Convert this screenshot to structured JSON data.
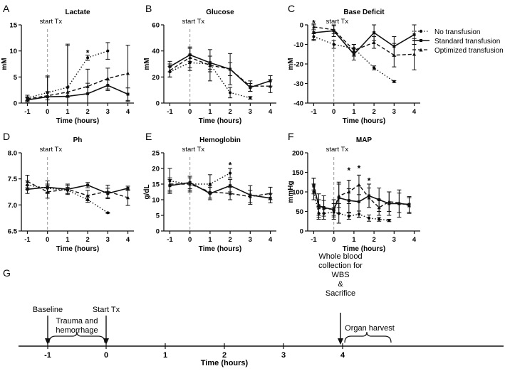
{
  "chart_data": [
    {
      "panel": "A",
      "type": "line",
      "title": "Lactate",
      "xlabel": "Time (hours)",
      "ylabel": "mM",
      "ylim": [
        0,
        15
      ],
      "yticks": [
        0,
        5,
        10,
        15
      ],
      "xlim": [
        -1.3,
        4.3
      ],
      "xticks": [
        -1,
        0,
        1,
        2,
        3,
        4
      ],
      "marker_label": "start Tx",
      "marker_x": 0,
      "series": [
        {
          "name": "No transfusion",
          "style": "dotted",
          "x": [
            -1,
            0,
            1,
            2,
            3
          ],
          "values": [
            1.0,
            2.0,
            3.0,
            8.7,
            10.0
          ],
          "err": [
            0.5,
            3.0,
            8.0,
            0.5,
            1.6
          ]
        },
        {
          "name": "Standard transfusion",
          "style": "solid",
          "x": [
            -1,
            0,
            1,
            2,
            3,
            4
          ],
          "values": [
            0.6,
            1.2,
            1.3,
            1.8,
            3.4,
            1.7
          ],
          "err": [
            0.4,
            4.0,
            10.0,
            2.0,
            1.0,
            1.2
          ]
        },
        {
          "name": "Optimized transfusion",
          "style": "dashed",
          "x": [
            -1,
            0,
            1,
            2,
            3,
            4
          ],
          "values": [
            0.8,
            1.4,
            2.1,
            3.2,
            4.7,
            5.7
          ],
          "err": [
            0.4,
            0.8,
            1.0,
            3.3,
            2.0,
            5.4
          ]
        }
      ],
      "annotations": [
        {
          "text": "*",
          "x": 2,
          "y": 9.6
        }
      ]
    },
    {
      "panel": "B",
      "type": "line",
      "title": "Glucose",
      "xlabel": "Time (hours)",
      "ylabel": "mM",
      "ylim": [
        0,
        60
      ],
      "yticks": [
        0,
        20,
        40,
        60
      ],
      "xlim": [
        -1.3,
        4.3
      ],
      "xticks": [
        -1,
        0,
        1,
        2,
        3,
        4
      ],
      "marker_label": "start Tx",
      "marker_x": 0,
      "series": [
        {
          "name": "No transfusion",
          "style": "dotted",
          "x": [
            -1,
            0,
            1,
            2,
            3
          ],
          "values": [
            24,
            31,
            30,
            8,
            4
          ],
          "err": [
            4,
            6,
            6,
            4,
            1
          ]
        },
        {
          "name": "Standard transfusion",
          "style": "solid",
          "x": [
            -1,
            0,
            1,
            2,
            3,
            4
          ],
          "values": [
            28,
            37,
            31,
            26,
            12,
            17
          ],
          "err": [
            4,
            5,
            5,
            5,
            3,
            4
          ]
        },
        {
          "name": "Optimized transfusion",
          "style": "dashed",
          "x": [
            -1,
            0,
            1,
            2,
            3,
            4
          ],
          "values": [
            25,
            35,
            29,
            26,
            13,
            13
          ],
          "err": [
            5,
            8,
            12,
            12,
            4,
            5
          ]
        }
      ],
      "annotations": []
    },
    {
      "panel": "C",
      "type": "line",
      "title": "Base Deficit",
      "xlabel": "Time (hours)",
      "ylabel": "mM",
      "ylim": [
        -40,
        0
      ],
      "yticks": [
        -40,
        -30,
        -20,
        -10,
        0
      ],
      "xlim": [
        -1.3,
        4.3
      ],
      "xticks": [
        -1,
        0,
        1,
        2,
        3,
        4
      ],
      "marker_label": "start Tx",
      "marker_x": 0,
      "series": [
        {
          "name": "No transfusion",
          "style": "dotted",
          "x": [
            -1,
            0,
            1,
            2,
            3
          ],
          "values": [
            -6,
            -10,
            -12,
            -22,
            -29
          ],
          "err": [
            1.5,
            2,
            2,
            1,
            0.5
          ]
        },
        {
          "name": "Standard transfusion",
          "style": "solid",
          "x": [
            -1,
            0,
            1,
            2,
            3,
            4
          ],
          "values": [
            -4,
            -3,
            -15,
            -4,
            -11,
            -5
          ],
          "err": [
            4,
            3,
            3,
            4,
            5,
            5
          ]
        },
        {
          "name": "Optimized transfusion",
          "style": "dashed",
          "x": [
            -1,
            0,
            1,
            2,
            3,
            4
          ],
          "values": [
            -1,
            -2.5,
            -13,
            -9,
            -15.5,
            -15
          ],
          "err": [
            1.5,
            2,
            3,
            3,
            6,
            8
          ]
        }
      ],
      "annotations": [
        {
          "text": "*",
          "x": -1,
          "y": 1
        }
      ]
    },
    {
      "panel": "D",
      "type": "line",
      "title": "Ph",
      "xlabel": "Time (hours)",
      "ylabel": "",
      "ylim": [
        6.5,
        8.0
      ],
      "yticks": [
        6.5,
        7.0,
        7.5,
        8.0
      ],
      "ytick_labels": [
        "6.5",
        "7.0",
        "7.5",
        "8.0"
      ],
      "xlim": [
        -1.3,
        4.3
      ],
      "xticks": [
        -1,
        0,
        1,
        2,
        3,
        4
      ],
      "marker_label": "start Tx",
      "marker_x": 0,
      "series": [
        {
          "name": "No transfusion",
          "style": "dotted",
          "x": [
            -1,
            0,
            1,
            2,
            3
          ],
          "values": [
            7.38,
            7.32,
            7.28,
            7.1,
            6.85
          ],
          "err": [
            0.08,
            0.08,
            0.06,
            0.05,
            0.01
          ]
        },
        {
          "name": "Standard transfusion",
          "style": "solid",
          "x": [
            -1,
            0,
            1,
            2,
            3,
            4
          ],
          "values": [
            7.3,
            7.34,
            7.3,
            7.38,
            7.22,
            7.32
          ],
          "err": [
            0.08,
            0.12,
            0.08,
            0.05,
            0.1,
            0.04
          ]
        },
        {
          "name": "Optimized transfusion",
          "style": "dashed",
          "x": [
            -1,
            0,
            1,
            2,
            3,
            4
          ],
          "values": [
            7.45,
            7.25,
            7.3,
            7.18,
            7.26,
            7.14
          ],
          "err": [
            0.12,
            0.12,
            0.1,
            0.1,
            0.12,
            0.15
          ]
        }
      ],
      "annotations": []
    },
    {
      "panel": "E",
      "type": "line",
      "title": "Hemoglobin",
      "xlabel": "Time (hours)",
      "ylabel": "g/dL",
      "ylim": [
        0,
        25
      ],
      "yticks": [
        0,
        5,
        10,
        15,
        20,
        25
      ],
      "xlim": [
        -1.3,
        4.3
      ],
      "xticks": [
        -1,
        0,
        1,
        2,
        3,
        4
      ],
      "marker_label": "start Tx",
      "marker_x": 0,
      "series": [
        {
          "name": "No transfusion",
          "style": "dotted",
          "x": [
            -1,
            0,
            1,
            2
          ],
          "values": [
            16,
            15,
            15,
            18.5
          ],
          "err": [
            4,
            2,
            3,
            1.5
          ]
        },
        {
          "name": "Standard transfusion",
          "style": "solid",
          "x": [
            -1,
            0,
            1,
            2,
            3,
            4
          ],
          "values": [
            14.5,
            15.5,
            12,
            14.5,
            11.5,
            10.5
          ],
          "err": [
            2,
            2,
            2,
            2,
            3,
            1.5
          ]
        },
        {
          "name": "Optimized transfusion",
          "style": "dashed",
          "x": [
            -1,
            0,
            1,
            2,
            3,
            4
          ],
          "values": [
            15,
            15,
            12.5,
            12,
            11,
            12
          ],
          "err": [
            2,
            2.5,
            2,
            2,
            2,
            2
          ]
        }
      ],
      "annotations": [
        {
          "text": "*",
          "x": 2,
          "y": 21
        }
      ]
    },
    {
      "panel": "F",
      "type": "line",
      "title": "MAP",
      "xlabel": "Time (hours)",
      "ylabel": "mmHg",
      "ylim": [
        0,
        200
      ],
      "yticks": [
        0,
        50,
        100,
        150,
        200
      ],
      "xlim": [
        -1.3,
        4.3
      ],
      "xticks": [
        -1,
        0,
        1,
        2,
        3,
        4
      ],
      "marker_label": "start Tx",
      "marker_x": 0,
      "series": [
        {
          "name": "No transfusion",
          "style": "dotted",
          "x": [
            -1,
            -0.75,
            -0.5,
            0,
            0.25,
            0.75,
            1.25,
            1.75,
            2.25,
            2.75
          ],
          "values": [
            100,
            45,
            45,
            48,
            45,
            38,
            43,
            33,
            30,
            27
          ],
          "err": [
            20,
            15,
            15,
            12,
            25,
            8,
            8,
            8,
            5,
            3
          ]
        },
        {
          "name": "Standard transfusion",
          "style": "solid",
          "x": [
            -1,
            -0.75,
            -0.5,
            0,
            0.25,
            0.75,
            1.25,
            1.75,
            2.25,
            2.75,
            3.25,
            3.75
          ],
          "values": [
            115,
            65,
            60,
            55,
            85,
            78,
            75,
            90,
            80,
            70,
            70,
            68
          ],
          "err": [
            20,
            30,
            30,
            25,
            40,
            30,
            40,
            30,
            30,
            30,
            35,
            20
          ]
        },
        {
          "name": "Optimized transfusion",
          "style": "dashed",
          "x": [
            -1,
            -0.75,
            -0.5,
            0,
            0.25,
            0.75,
            1.25,
            1.75,
            2.25,
            2.75,
            3.25,
            3.75
          ],
          "values": [
            120,
            60,
            58,
            55,
            90,
            100,
            118,
            85,
            60,
            75,
            72,
            65
          ],
          "err": [
            15,
            20,
            20,
            15,
            30,
            30,
            25,
            25,
            20,
            25,
            25,
            20
          ]
        }
      ],
      "annotations": [
        {
          "text": "*",
          "x": 0.75,
          "y": 155
        },
        {
          "text": "*",
          "x": 1.25,
          "y": 160
        },
        {
          "text": "*",
          "x": 1.75,
          "y": 128
        }
      ]
    }
  ],
  "panels": [
    {
      "letter": "A"
    },
    {
      "letter": "B"
    },
    {
      "letter": "C"
    },
    {
      "letter": "D"
    },
    {
      "letter": "E"
    },
    {
      "letter": "F"
    }
  ],
  "legend": {
    "items": [
      {
        "label": "No transfusion",
        "style": "dotted"
      },
      {
        "label": "Standard transfusion",
        "style": "solid"
      },
      {
        "label": "Optimized transfusion",
        "style": "dashed"
      }
    ]
  },
  "timeline": {
    "letter": "G",
    "xlabel": "Time (hours)",
    "ticks": [
      "-1",
      "0",
      "1",
      "2",
      "3",
      "4"
    ],
    "baseline": "Baseline",
    "start_tx": "Start Tx",
    "trauma_line1": "Trauma and",
    "trauma_line2": "hemorrhage",
    "whole_blood_lines": [
      "Whole blood",
      "collection for",
      "WBS",
      "&",
      "Sacrifice"
    ],
    "organ_harvest": "Organ harvest"
  }
}
